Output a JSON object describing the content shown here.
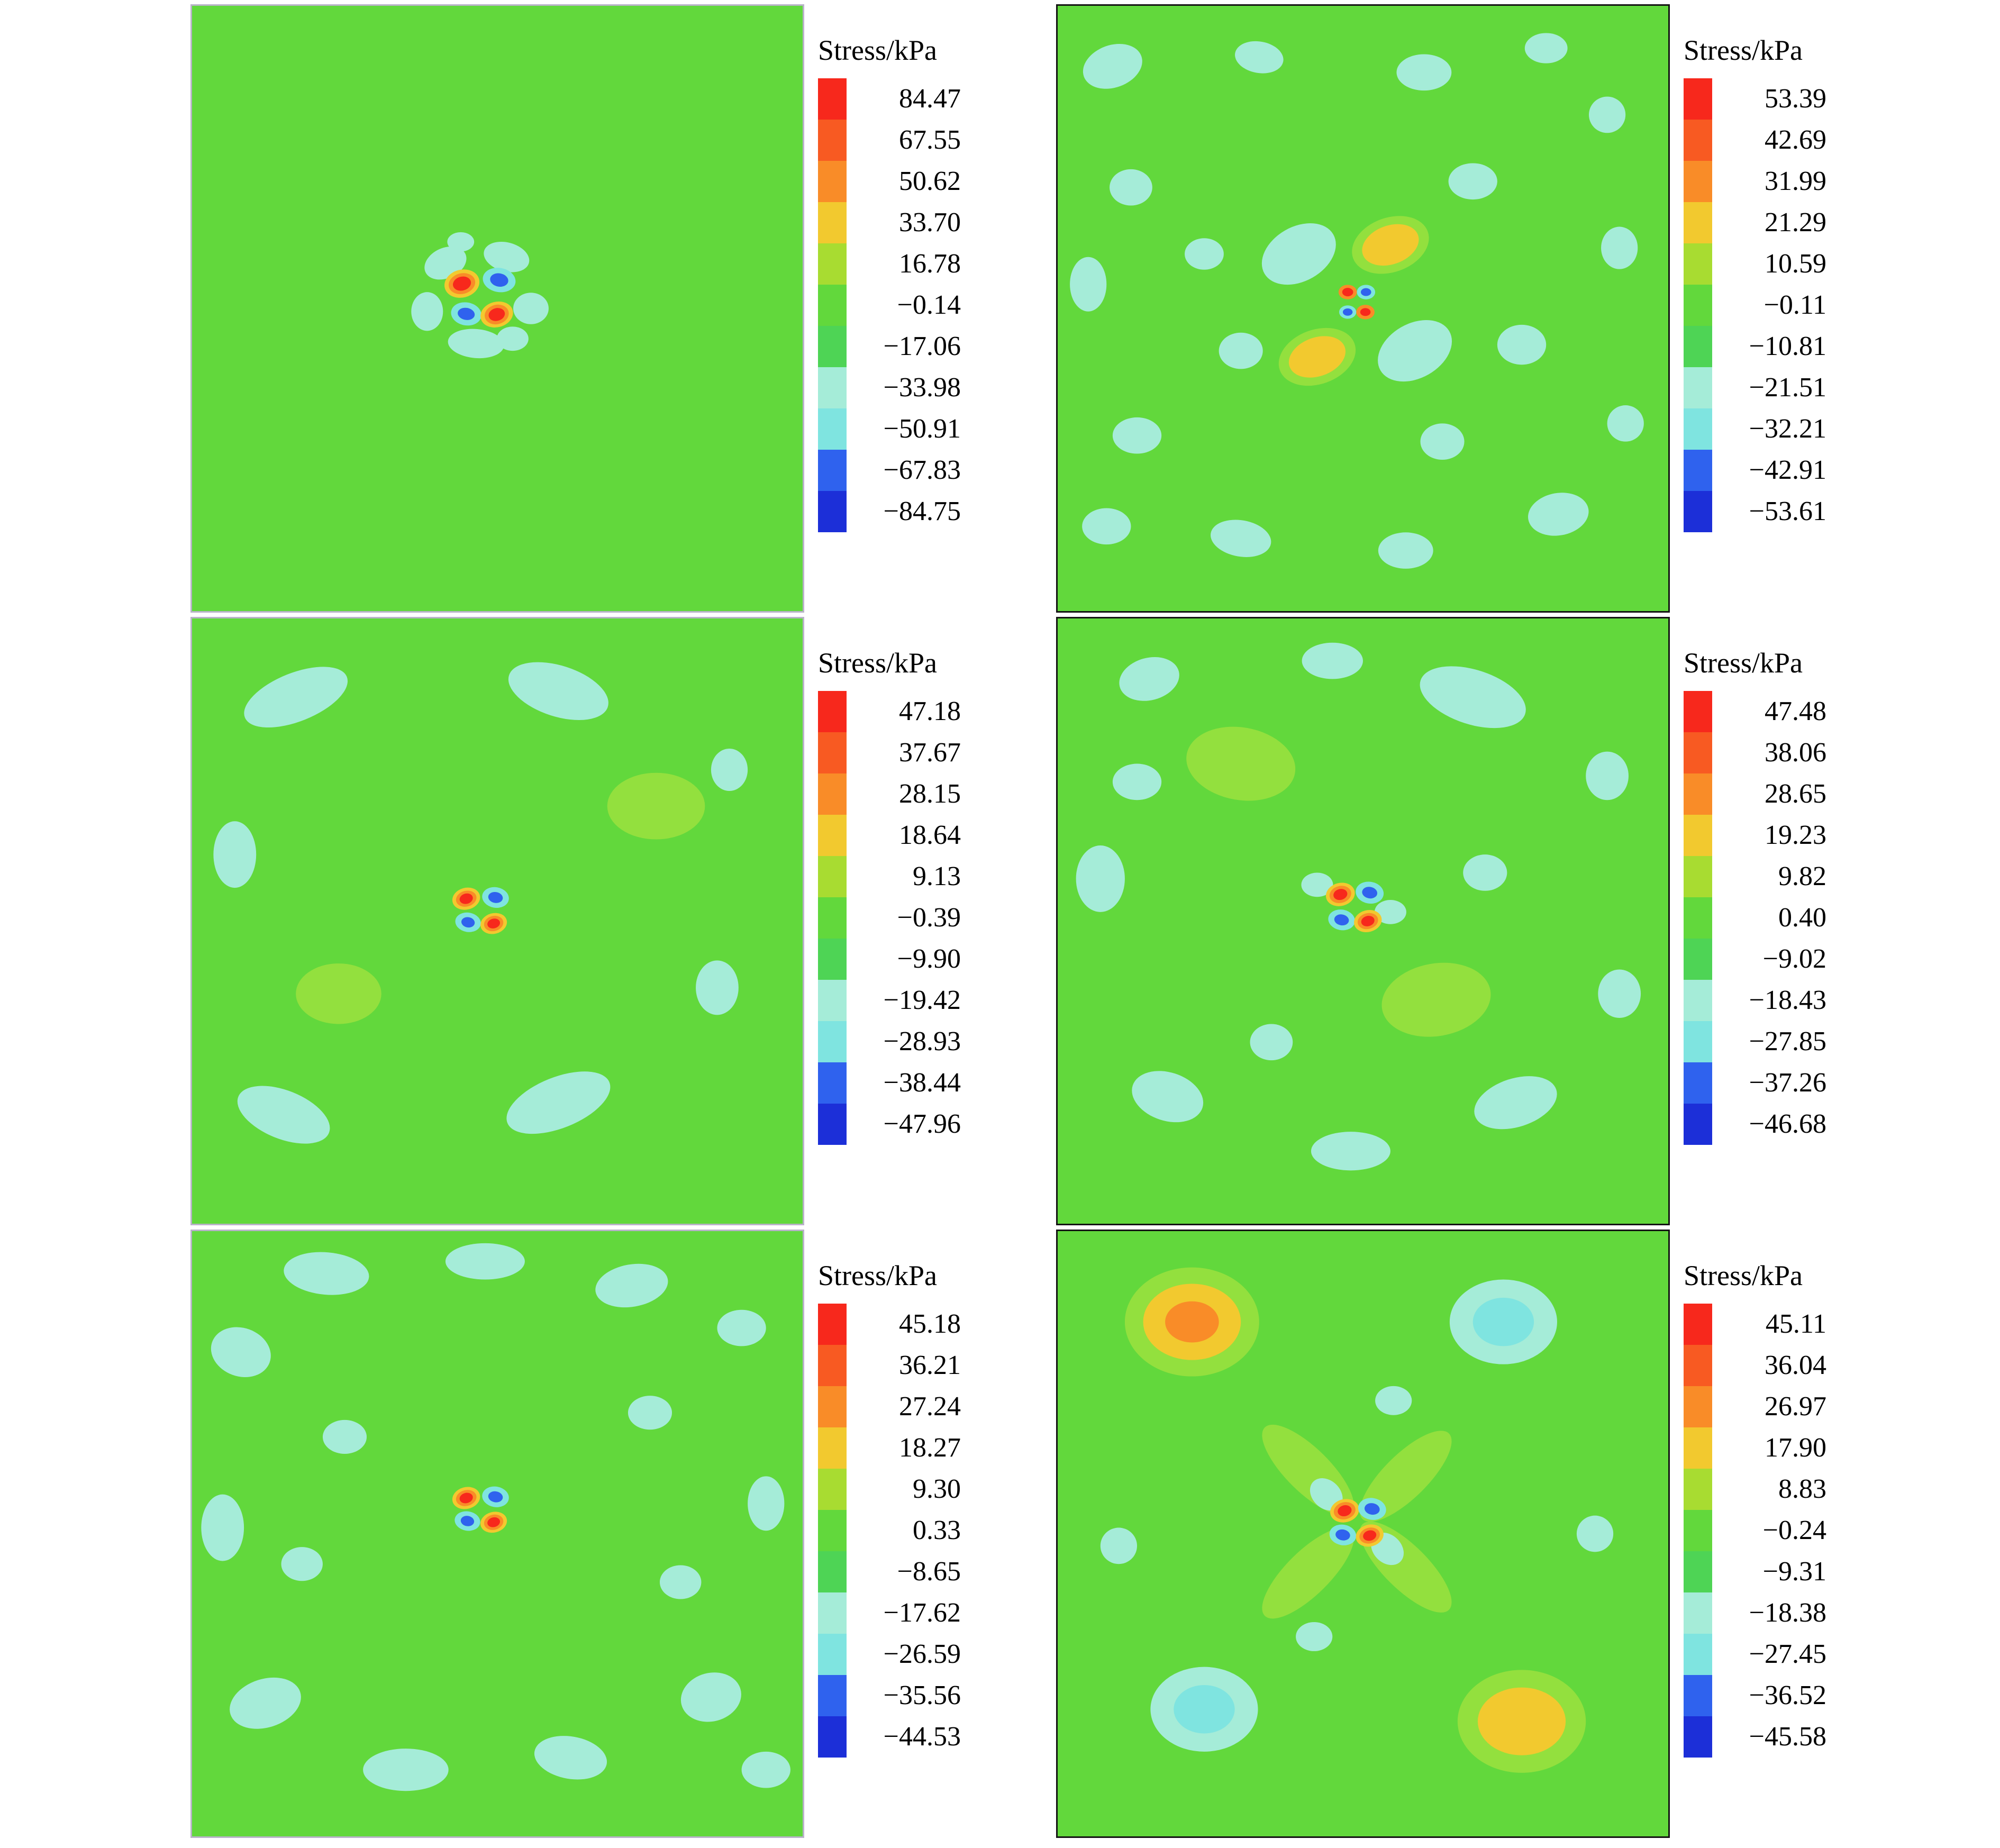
{
  "colors": {
    "bg": "#62d83c",
    "lg": "#93e03e",
    "cy": "#a5ecd8",
    "cy2": "#7fe4e0",
    "ye": "#f2c92f",
    "or": "#f98c28",
    "re": "#f7281c",
    "bl": "#2f62ee",
    "db": "#1c2fd8"
  },
  "legend_palette": [
    "#f7281c",
    "#f85a22",
    "#f98c28",
    "#f2c92f",
    "#a8dc31",
    "#62d83c",
    "#4ed455",
    "#a5ecd8",
    "#7fe4e0",
    "#2f62ee",
    "#1c2fd8"
  ],
  "chart_data": [
    {
      "id": "top-left",
      "type": "heatmap",
      "title": "Stress/kPa",
      "unit": "kPa",
      "legend_values": [
        "84.47",
        "67.55",
        "50.62",
        "33.70",
        "16.78",
        "−0.14",
        "−17.06",
        "−33.98",
        "−50.91",
        "−67.83",
        "−84.75"
      ],
      "frame_color": "#b9b3c9",
      "blobs": [
        [
          41.5,
          42.5,
          3.6,
          2.5,
          -25,
          "cy"
        ],
        [
          51.5,
          41.5,
          3.8,
          2.4,
          15,
          "cy"
        ],
        [
          38.5,
          50.5,
          2.6,
          3.2,
          0,
          "cy"
        ],
        [
          55.5,
          50.0,
          2.9,
          2.6,
          0,
          "cy"
        ],
        [
          46.5,
          55.8,
          4.6,
          2.4,
          5,
          "cy"
        ],
        [
          52.5,
          55.0,
          2.6,
          2.0,
          0,
          "cy"
        ],
        [
          44.0,
          39.0,
          2.2,
          1.6,
          0,
          "cy"
        ],
        [
          44.2,
          45.9,
          2.9,
          2.3,
          -15,
          "ye"
        ],
        [
          44.2,
          45.9,
          2.2,
          1.7,
          -15,
          "or"
        ],
        [
          44.2,
          45.9,
          1.5,
          1.15,
          -15,
          "re"
        ],
        [
          50.3,
          45.3,
          2.7,
          2.0,
          10,
          "cy2"
        ],
        [
          50.3,
          45.3,
          1.5,
          1.1,
          10,
          "bl"
        ],
        [
          44.9,
          50.9,
          2.5,
          1.9,
          10,
          "cy2"
        ],
        [
          44.9,
          50.9,
          1.4,
          1.0,
          10,
          "bl"
        ],
        [
          49.9,
          51.0,
          2.7,
          2.1,
          -15,
          "ye"
        ],
        [
          49.9,
          51.0,
          2.0,
          1.6,
          -15,
          "or"
        ],
        [
          49.9,
          51.0,
          1.35,
          1.05,
          -15,
          "re"
        ]
      ]
    },
    {
      "id": "top-right",
      "type": "heatmap",
      "title": "Stress/kPa",
      "unit": "kPa",
      "legend_values": [
        "53.39",
        "42.69",
        "31.99",
        "21.29",
        "10.59",
        "−0.11",
        "−10.81",
        "−21.51",
        "−32.21",
        "−42.91",
        "−53.61"
      ],
      "frame_color": "#141414",
      "blobs": [
        [
          9,
          10,
          5,
          3.5,
          -20,
          "cy"
        ],
        [
          33,
          8.5,
          4,
          2.6,
          10,
          "cy"
        ],
        [
          60,
          11,
          4.5,
          3,
          0,
          "cy"
        ],
        [
          80,
          7,
          3.5,
          2.5,
          0,
          "cy"
        ],
        [
          90,
          18,
          3,
          3,
          0,
          "cy"
        ],
        [
          12,
          30,
          3.5,
          3,
          0,
          "cy"
        ],
        [
          5,
          46,
          3,
          4.5,
          0,
          "cy"
        ],
        [
          92,
          40,
          3,
          3.5,
          0,
          "cy"
        ],
        [
          24,
          41,
          3.2,
          2.6,
          0,
          "cy"
        ],
        [
          13,
          71,
          4,
          3,
          0,
          "cy"
        ],
        [
          8,
          86,
          4,
          3,
          0,
          "cy"
        ],
        [
          30,
          88,
          5,
          3,
          10,
          "cy"
        ],
        [
          57,
          90,
          4.5,
          3,
          0,
          "cy"
        ],
        [
          82,
          84,
          5,
          3.5,
          -10,
          "cy"
        ],
        [
          93,
          69,
          3,
          3,
          0,
          "cy"
        ],
        [
          68,
          29,
          4,
          3,
          0,
          "cy"
        ],
        [
          76,
          56,
          4,
          3.3,
          0,
          "cy"
        ],
        [
          30,
          57,
          3.6,
          3,
          0,
          "cy"
        ],
        [
          63,
          72,
          3.6,
          3,
          0,
          "cy"
        ],
        [
          39.5,
          41,
          6.5,
          4.5,
          -30,
          "cy"
        ],
        [
          58.5,
          57,
          6.5,
          4.5,
          -30,
          "cy"
        ],
        [
          54.5,
          39.5,
          6.5,
          4.5,
          -20,
          "lg"
        ],
        [
          54.5,
          39.5,
          4.8,
          3.2,
          -20,
          "ye"
        ],
        [
          42.5,
          58,
          6.5,
          4.5,
          -20,
          "lg"
        ],
        [
          42.5,
          58,
          4.8,
          3.2,
          -20,
          "ye"
        ],
        [
          47.5,
          47.3,
          1.5,
          1.2,
          0,
          "or"
        ],
        [
          47.5,
          47.3,
          0.9,
          0.7,
          0,
          "re"
        ],
        [
          50.5,
          47.3,
          1.5,
          1.2,
          0,
          "cy2"
        ],
        [
          50.5,
          47.3,
          0.85,
          0.65,
          0,
          "bl"
        ],
        [
          47.5,
          50.6,
          1.4,
          1.1,
          0,
          "cy2"
        ],
        [
          47.5,
          50.6,
          0.8,
          0.6,
          0,
          "bl"
        ],
        [
          50.4,
          50.6,
          1.5,
          1.2,
          0,
          "or"
        ],
        [
          50.4,
          50.6,
          0.85,
          0.65,
          0,
          "re"
        ]
      ]
    },
    {
      "id": "middle-left",
      "type": "heatmap",
      "title": "Stress/kPa",
      "unit": "kPa",
      "legend_values": [
        "47.18",
        "37.67",
        "28.15",
        "18.64",
        "9.13",
        "−0.39",
        "−9.90",
        "−19.42",
        "−28.93",
        "−38.44",
        "−47.96"
      ],
      "frame_color": "#b9b3c9",
      "blobs": [
        [
          76,
          31,
          8,
          5.5,
          0,
          "lg"
        ],
        [
          24,
          62,
          7,
          5,
          0,
          "lg"
        ],
        [
          17,
          13,
          9,
          4,
          -22,
          "cy"
        ],
        [
          60,
          12,
          8.5,
          4.2,
          18,
          "cy"
        ],
        [
          7,
          39,
          3.5,
          5.5,
          0,
          "cy"
        ],
        [
          15,
          82,
          8,
          4,
          22,
          "cy"
        ],
        [
          60,
          80,
          9,
          4.2,
          -22,
          "cy"
        ],
        [
          86,
          61,
          3.5,
          4.5,
          0,
          "cy"
        ],
        [
          88,
          25,
          3,
          3.5,
          0,
          "cy"
        ],
        [
          44.9,
          46.3,
          2.3,
          1.8,
          -15,
          "ye"
        ],
        [
          44.9,
          46.3,
          1.7,
          1.3,
          -15,
          "or"
        ],
        [
          44.9,
          46.3,
          1.1,
          0.85,
          -15,
          "re"
        ],
        [
          49.7,
          46.1,
          2.2,
          1.7,
          10,
          "cy2"
        ],
        [
          49.7,
          46.1,
          1.2,
          0.9,
          10,
          "bl"
        ],
        [
          45.2,
          50.2,
          2.1,
          1.6,
          10,
          "cy2"
        ],
        [
          45.2,
          50.2,
          1.1,
          0.85,
          10,
          "bl"
        ],
        [
          49.4,
          50.4,
          2.2,
          1.7,
          -15,
          "ye"
        ],
        [
          49.4,
          50.4,
          1.6,
          1.25,
          -15,
          "or"
        ],
        [
          49.4,
          50.4,
          1.05,
          0.8,
          -15,
          "re"
        ]
      ]
    },
    {
      "id": "middle-right",
      "type": "heatmap",
      "title": "Stress/kPa",
      "unit": "kPa",
      "legend_values": [
        "47.48",
        "38.06",
        "28.65",
        "19.23",
        "9.82",
        "0.40",
        "−9.02",
        "−18.43",
        "−27.85",
        "−37.26",
        "−46.68"
      ],
      "frame_color": "#141414",
      "blobs": [
        [
          30,
          24,
          9,
          6,
          10,
          "lg"
        ],
        [
          62,
          63,
          9,
          6,
          -10,
          "lg"
        ],
        [
          15,
          10,
          5,
          3.5,
          -15,
          "cy"
        ],
        [
          45,
          7,
          5,
          3,
          0,
          "cy"
        ],
        [
          68,
          13,
          9,
          4.5,
          18,
          "cy"
        ],
        [
          90,
          26,
          3.5,
          4,
          0,
          "cy"
        ],
        [
          7,
          43,
          4,
          5.5,
          0,
          "cy"
        ],
        [
          13,
          27,
          4,
          3,
          0,
          "cy"
        ],
        [
          18,
          79,
          6,
          4,
          18,
          "cy"
        ],
        [
          48,
          88,
          6.5,
          3.2,
          0,
          "cy"
        ],
        [
          75,
          80,
          7,
          4,
          -18,
          "cy"
        ],
        [
          92,
          62,
          3.5,
          4,
          0,
          "cy"
        ],
        [
          35,
          70,
          3.5,
          3,
          0,
          "cy"
        ],
        [
          70,
          42,
          3.6,
          3,
          0,
          "cy"
        ],
        [
          42.5,
          44,
          2.6,
          2,
          0,
          "cy"
        ],
        [
          54.5,
          48.5,
          2.6,
          2,
          0,
          "cy"
        ],
        [
          46.3,
          45.6,
          2.4,
          1.9,
          -15,
          "ye"
        ],
        [
          46.3,
          45.6,
          1.8,
          1.4,
          -15,
          "or"
        ],
        [
          46.3,
          45.6,
          1.15,
          0.9,
          -15,
          "re"
        ],
        [
          51.1,
          45.3,
          2.3,
          1.8,
          10,
          "cy2"
        ],
        [
          51.1,
          45.3,
          1.25,
          0.95,
          10,
          "bl"
        ],
        [
          46.5,
          49.8,
          2.2,
          1.7,
          10,
          "cy2"
        ],
        [
          46.5,
          49.8,
          1.2,
          0.9,
          10,
          "bl"
        ],
        [
          50.8,
          50.0,
          2.3,
          1.8,
          -15,
          "ye"
        ],
        [
          50.8,
          50.0,
          1.7,
          1.3,
          -15,
          "or"
        ],
        [
          50.8,
          50.0,
          1.1,
          0.85,
          -15,
          "re"
        ]
      ]
    },
    {
      "id": "bottom-left",
      "type": "heatmap",
      "title": "Stress/kPa",
      "unit": "kPa",
      "legend_values": [
        "45.18",
        "36.21",
        "27.24",
        "18.27",
        "9.30",
        "0.33",
        "−8.65",
        "−17.62",
        "−26.59",
        "−35.56",
        "−44.53"
      ],
      "frame_color": "#b9b3c9",
      "blobs": [
        [
          22,
          7,
          7,
          3.5,
          5,
          "cy"
        ],
        [
          48,
          5,
          6.5,
          3,
          0,
          "cy"
        ],
        [
          72,
          9,
          6,
          3.5,
          -10,
          "cy"
        ],
        [
          90,
          16,
          4,
          3,
          0,
          "cy"
        ],
        [
          8,
          20,
          5,
          4,
          20,
          "cy"
        ],
        [
          5,
          49,
          3.5,
          5.5,
          0,
          "cy"
        ],
        [
          94,
          45,
          3,
          4.5,
          0,
          "cy"
        ],
        [
          12,
          78,
          6,
          4,
          -18,
          "cy"
        ],
        [
          35,
          89,
          7,
          3.5,
          0,
          "cy"
        ],
        [
          62,
          87,
          6,
          3.5,
          10,
          "cy"
        ],
        [
          85,
          77,
          5,
          4,
          -15,
          "cy"
        ],
        [
          94,
          89,
          4,
          3,
          0,
          "cy"
        ],
        [
          25,
          34,
          3.6,
          2.8,
          0,
          "cy"
        ],
        [
          75,
          30,
          3.6,
          2.8,
          0,
          "cy"
        ],
        [
          80,
          58,
          3.4,
          2.8,
          0,
          "cy"
        ],
        [
          18,
          55,
          3.4,
          2.8,
          0,
          "cy"
        ],
        [
          44.9,
          44.1,
          2.3,
          1.8,
          -15,
          "ye"
        ],
        [
          44.9,
          44.1,
          1.7,
          1.3,
          -15,
          "or"
        ],
        [
          44.9,
          44.1,
          1.1,
          0.85,
          -15,
          "re"
        ],
        [
          49.7,
          43.9,
          2.2,
          1.7,
          10,
          "cy2"
        ],
        [
          49.7,
          43.9,
          1.2,
          0.9,
          10,
          "bl"
        ],
        [
          45.1,
          47.9,
          2.1,
          1.6,
          10,
          "cy2"
        ],
        [
          45.1,
          47.9,
          1.1,
          0.85,
          10,
          "bl"
        ],
        [
          49.4,
          48.1,
          2.2,
          1.7,
          -15,
          "ye"
        ],
        [
          49.4,
          48.1,
          1.6,
          1.25,
          -15,
          "or"
        ],
        [
          49.4,
          48.1,
          1.05,
          0.8,
          -15,
          "re"
        ]
      ]
    },
    {
      "id": "bottom-right",
      "type": "heatmap",
      "title": "Stress/kPa",
      "unit": "kPa",
      "legend_values": [
        "45.11",
        "36.04",
        "26.97",
        "17.90",
        "8.83",
        "−0.24",
        "−9.31",
        "−18.38",
        "−27.45",
        "−36.52",
        "−45.58"
      ],
      "frame_color": "#141414",
      "blobs": [
        [
          41,
          39.5,
          10,
          3.6,
          45,
          "lg"
        ],
        [
          57,
          55.5,
          10,
          3.6,
          45,
          "lg"
        ],
        [
          41,
          56.5,
          10,
          3.6,
          -45,
          "lg"
        ],
        [
          57,
          40.5,
          10,
          3.6,
          -45,
          "lg"
        ],
        [
          22,
          15,
          11,
          9,
          0,
          "lg"
        ],
        [
          22,
          15,
          8,
          6.3,
          0,
          "ye"
        ],
        [
          22,
          15,
          4.4,
          3.4,
          0,
          "or"
        ],
        [
          73,
          15,
          8.8,
          7,
          0,
          "cy"
        ],
        [
          73,
          15,
          5,
          4,
          0,
          "cy2"
        ],
        [
          24,
          79,
          8.8,
          7,
          0,
          "cy"
        ],
        [
          24,
          79,
          5,
          4,
          0,
          "cy2"
        ],
        [
          76,
          81,
          10.5,
          8.5,
          0,
          "lg"
        ],
        [
          76,
          81,
          7.2,
          5.6,
          0,
          "ye"
        ],
        [
          55,
          28,
          3,
          2.4,
          0,
          "cy"
        ],
        [
          42,
          67,
          3,
          2.4,
          0,
          "cy"
        ],
        [
          88,
          50,
          3,
          3,
          0,
          "cy"
        ],
        [
          10,
          52,
          3,
          3,
          0,
          "cy"
        ],
        [
          44,
          43.5,
          3,
          2.3,
          45,
          "cy"
        ],
        [
          54,
          52.5,
          3,
          2.3,
          45,
          "cy"
        ],
        [
          47.0,
          46.2,
          2.4,
          1.9,
          -15,
          "ye"
        ],
        [
          47.0,
          46.2,
          1.8,
          1.4,
          -15,
          "or"
        ],
        [
          47.0,
          46.2,
          1.15,
          0.9,
          -15,
          "re"
        ],
        [
          51.5,
          45.9,
          2.3,
          1.8,
          10,
          "cy2"
        ],
        [
          51.5,
          45.9,
          1.25,
          0.95,
          10,
          "bl"
        ],
        [
          46.7,
          50.2,
          2.2,
          1.7,
          10,
          "cy2"
        ],
        [
          46.7,
          50.2,
          1.2,
          0.9,
          10,
          "bl"
        ],
        [
          51.1,
          50.3,
          2.3,
          1.8,
          -15,
          "ye"
        ],
        [
          51.1,
          50.3,
          1.7,
          1.3,
          -15,
          "or"
        ],
        [
          51.1,
          50.3,
          1.1,
          0.85,
          -15,
          "re"
        ]
      ]
    }
  ]
}
